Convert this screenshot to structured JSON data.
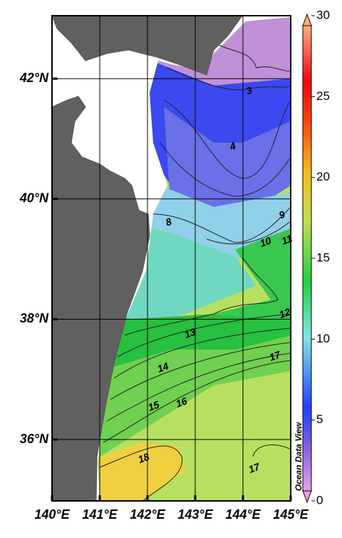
{
  "map": {
    "lon_ticks": [
      {
        "value": 140,
        "label": "140°E"
      },
      {
        "value": 141,
        "label": "141°E"
      },
      {
        "value": 142,
        "label": "142°E"
      },
      {
        "value": 143,
        "label": "143°E"
      },
      {
        "value": 144,
        "label": "144°E"
      },
      {
        "value": 145,
        "label": "145°E"
      }
    ],
    "lat_ticks": [
      {
        "value": 36,
        "label": "36°N"
      },
      {
        "value": 38,
        "label": "38°N"
      },
      {
        "value": 40,
        "label": "40°N"
      },
      {
        "value": 42,
        "label": "42°N"
      }
    ],
    "colorbar_ticks": [
      0,
      5,
      10,
      15,
      20,
      25,
      30
    ],
    "contour_labels": [
      3,
      4,
      8,
      9,
      10,
      11,
      12,
      13,
      14,
      15,
      16,
      17,
      18,
      17
    ],
    "credit": "Ocean Data View"
  }
}
